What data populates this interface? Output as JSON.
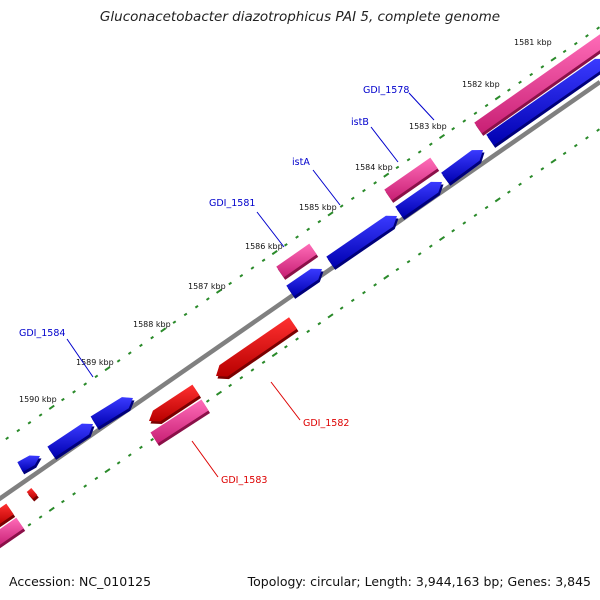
{
  "title": "Gluconacetobacter diazotrophicus PAI 5, complete genome",
  "footer": {
    "accession": "Accession: NC_010125",
    "summary": "Topology: circular; Length: 3,944,163 bp; Genes: 3,845"
  },
  "scale": {
    "ticks": [
      "1581 kbp",
      "1582 kbp",
      "1583 kbp",
      "1584 kbp",
      "1585 kbp",
      "1586 kbp",
      "1587 kbp",
      "1588 kbp",
      "1589 kbp",
      "1590 kbp"
    ]
  },
  "gene_labels": {
    "gdi_1578": "GDI_1578",
    "istB": "istB",
    "istA": "istA",
    "gdi_1581": "GDI_1581",
    "gdi_1584": "GDI_1584",
    "gdi_1582": "GDI_1582",
    "gdi_1583": "GDI_1583"
  },
  "colors": {
    "cds_forward": "#0000e0",
    "gene_forward": "#ee2a8c",
    "cds_reverse": "#e00000",
    "gene_reverse": "#ee2a8c",
    "backbone": "#808080",
    "tick_marks": "#2a8a2a",
    "label_forward": "#0000cc",
    "label_reverse": "#dd0000"
  }
}
